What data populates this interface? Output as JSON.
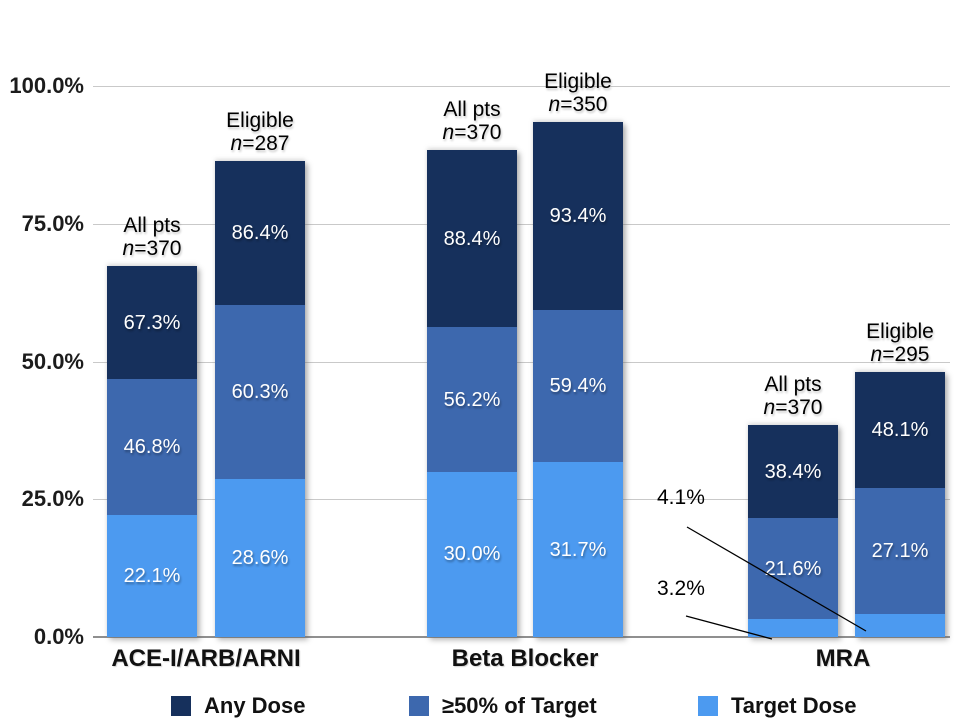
{
  "chart_data": {
    "type": "bar",
    "title": "",
    "ylim": [
      0,
      100
    ],
    "grid": true,
    "legend_position": "bottom",
    "yticks": [
      {
        "value": 0,
        "label": "0.0%"
      },
      {
        "value": 25,
        "label": "25.0%"
      },
      {
        "value": 50,
        "label": "50.0%"
      },
      {
        "value": 75,
        "label": "75.0%"
      },
      {
        "value": 100,
        "label": "100.0%"
      }
    ],
    "series": [
      {
        "key": "any_dose",
        "name": "Any Dose",
        "color": "#16305C"
      },
      {
        "key": "ge50_of_target",
        "name": "≥50% of Target",
        "color": "#3D68AE"
      },
      {
        "key": "target_dose",
        "name": "Target Dose",
        "color": "#4C9AF0"
      }
    ],
    "groups": [
      {
        "category": "ACE-I/ARB/ARNI",
        "bars": [
          {
            "name": "All pts",
            "n_label": "n=370",
            "values": {
              "any_dose": 67.3,
              "ge50_of_target": 46.8,
              "target_dose": 22.1
            },
            "labels": {
              "any_dose": "67.3%",
              "ge50_of_target": "46.8%",
              "target_dose": "22.1%"
            }
          },
          {
            "name": "Eligible",
            "n_label": "n=287",
            "values": {
              "any_dose": 86.4,
              "ge50_of_target": 60.3,
              "target_dose": 28.6
            },
            "labels": {
              "any_dose": "86.4%",
              "ge50_of_target": "60.3%",
              "target_dose": "28.6%"
            }
          }
        ]
      },
      {
        "category": "Beta Blocker",
        "bars": [
          {
            "name": "All pts",
            "n_label": "n=370",
            "values": {
              "any_dose": 88.4,
              "ge50_of_target": 56.2,
              "target_dose": 30.0
            },
            "labels": {
              "any_dose": "88.4%",
              "ge50_of_target": "56.2%",
              "target_dose": "30.0%"
            }
          },
          {
            "name": "Eligible",
            "n_label": "n=350",
            "values": {
              "any_dose": 93.4,
              "ge50_of_target": 59.4,
              "target_dose": 31.7
            },
            "labels": {
              "any_dose": "93.4%",
              "ge50_of_target": "59.4%",
              "target_dose": "31.7%"
            }
          }
        ]
      },
      {
        "category": "MRA",
        "bars": [
          {
            "name": "All pts",
            "n_label": "n=370",
            "values": {
              "any_dose": 38.4,
              "ge50_of_target": 21.6,
              "target_dose": 3.2
            },
            "labels": {
              "any_dose": "38.4%",
              "ge50_of_target": "21.6%"
            },
            "target_label_outside": true
          },
          {
            "name": "Eligible",
            "n_label": "n=295",
            "values": {
              "any_dose": 48.1,
              "ge50_of_target": 27.1,
              "target_dose": 4.1
            },
            "labels": {
              "any_dose": "48.1%",
              "ge50_of_target": "27.1%"
            },
            "target_label_outside": true
          }
        ]
      }
    ],
    "callouts": [
      {
        "text": "4.1%",
        "group": 2,
        "bar": 1,
        "series": "target_dose"
      },
      {
        "text": "3.2%",
        "group": 2,
        "bar": 0,
        "series": "target_dose"
      }
    ]
  }
}
